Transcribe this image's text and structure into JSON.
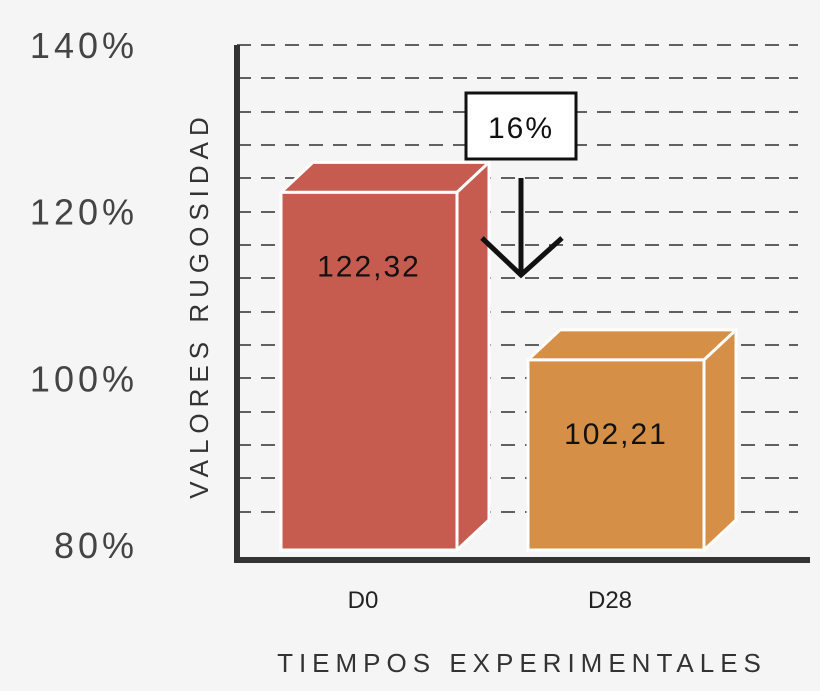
{
  "chart_data": {
    "type": "bar",
    "categories": [
      "D0",
      "D28"
    ],
    "values": [
      122.32,
      102.21
    ],
    "value_labels": [
      "122,32",
      "102,21"
    ],
    "ylim": [
      80,
      140
    ],
    "yticks": [
      80,
      100,
      120,
      140
    ],
    "ytick_labels": [
      "80%",
      "100%",
      "120%",
      "140%"
    ],
    "ylabel": "VALORES RUGOSIDAD",
    "xlabel": "TIEMPOS EXPERIMENTALES",
    "grid": true,
    "grid_style": "dashed",
    "bar_style": "3d",
    "colors": [
      "#c65c4f",
      "#d68f47"
    ],
    "callout": {
      "text": "16%",
      "pointer": "down-arrow"
    }
  }
}
